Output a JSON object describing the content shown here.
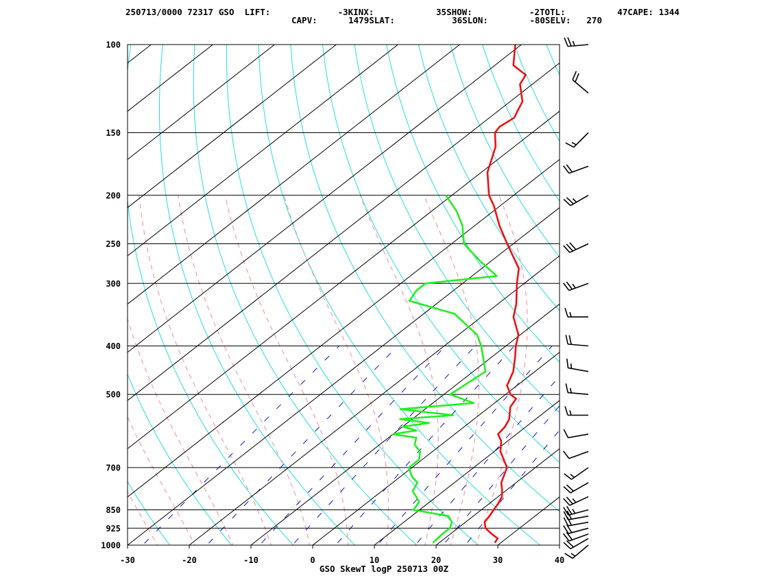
{
  "header": {
    "line1": [
      {
        "key": "stamp",
        "text": "250713/0000 72317"
      },
      {
        "key": "station",
        "text": "GSO"
      },
      {
        "key": "lift_label",
        "text": "LIFT:"
      },
      {
        "key": "lift_value",
        "text": "-3"
      },
      {
        "key": "kinx_label",
        "text": "KINX:"
      },
      {
        "key": "kinx_value",
        "text": "35"
      },
      {
        "key": "show_label",
        "text": "SHOW:"
      },
      {
        "key": "show_value",
        "text": "-2"
      },
      {
        "key": "totl_label",
        "text": "TOTL:"
      },
      {
        "key": "totl_value",
        "text": "47"
      },
      {
        "key": "cape_label",
        "text": "CAPE:"
      },
      {
        "key": "cape_value",
        "text": "1344"
      }
    ],
    "line2": [
      {
        "key": "capv_label",
        "text": "CAPV:"
      },
      {
        "key": "capv_value",
        "text": "1479"
      },
      {
        "key": "slat_label",
        "text": "SLAT:"
      },
      {
        "key": "slat_value",
        "text": "36"
      },
      {
        "key": "slon_label",
        "text": "SLON:"
      },
      {
        "key": "slon_value",
        "text": "-80"
      },
      {
        "key": "selv_label",
        "text": "SELV:"
      },
      {
        "key": "selv_value",
        "text": "270"
      }
    ]
  },
  "footer": {
    "caption": "GSO SkewT logP 250713 00Z"
  },
  "colors": {
    "temperature": "#ee1111",
    "dewpoint": "#22ee22",
    "isotherm": "#000000",
    "dry_adiabat": "#22dddd",
    "moist_adiabat": "#f4a8b0",
    "mixing_ratio": "#1010cc",
    "wind_barb": "#000000"
  },
  "chart_data": {
    "type": "skew-t log-p",
    "title": "",
    "xlabel": "",
    "ylabel": "",
    "x_range": [
      -30,
      40
    ],
    "y_range": [
      1000,
      100
    ],
    "x_ticks": [
      -30,
      -20,
      -10,
      0,
      10,
      20,
      30,
      40
    ],
    "y_ticks": [
      100,
      150,
      200,
      250,
      300,
      400,
      500,
      700,
      850,
      925,
      1000
    ],
    "series": [
      {
        "key": "temperature",
        "points": [
          [
            989,
            29.0
          ],
          [
            970,
            28.6
          ],
          [
            950,
            26.7
          ],
          [
            925,
            24.5
          ],
          [
            900,
            23.1
          ],
          [
            875,
            22.6
          ],
          [
            850,
            22.0
          ],
          [
            825,
            21.4
          ],
          [
            800,
            20.6
          ],
          [
            775,
            19.2
          ],
          [
            750,
            17.6
          ],
          [
            700,
            15.4
          ],
          [
            650,
            11.0
          ],
          [
            620,
            9.0
          ],
          [
            600,
            7.0
          ],
          [
            580,
            6.6
          ],
          [
            560,
            5.7
          ],
          [
            530,
            3.4
          ],
          [
            510,
            2.6
          ],
          [
            500,
            0.8
          ],
          [
            480,
            -1.6
          ],
          [
            450,
            -3.5
          ],
          [
            420,
            -6.3
          ],
          [
            400,
            -8.4
          ],
          [
            380,
            -10.3
          ],
          [
            350,
            -14.8
          ],
          [
            330,
            -17.0
          ],
          [
            300,
            -21.2
          ],
          [
            280,
            -24.0
          ],
          [
            250,
            -31.0
          ],
          [
            230,
            -36.0
          ],
          [
            210,
            -41.0
          ],
          [
            200,
            -44.0
          ],
          [
            180,
            -49.0
          ],
          [
            160,
            -53.0
          ],
          [
            150,
            -56.0
          ],
          [
            146,
            -56.5
          ],
          [
            140,
            -56.0
          ],
          [
            135,
            -57.0
          ],
          [
            130,
            -58.0
          ],
          [
            120,
            -62.0
          ],
          [
            115,
            -63.0
          ],
          [
            110,
            -67.0
          ],
          [
            100,
            -71.0
          ]
        ]
      },
      {
        "key": "dewpoint",
        "points": [
          [
            989,
            19.0
          ],
          [
            950,
            18.7
          ],
          [
            925,
            18.7
          ],
          [
            900,
            17.8
          ],
          [
            875,
            16.0
          ],
          [
            850,
            9.0
          ],
          [
            820,
            8.3
          ],
          [
            800,
            6.7
          ],
          [
            780,
            5.0
          ],
          [
            750,
            4.0
          ],
          [
            730,
            1.9
          ],
          [
            700,
            -0.5
          ],
          [
            675,
            -0.5
          ],
          [
            650,
            -2.0
          ],
          [
            630,
            -4.3
          ],
          [
            610,
            -5.5
          ],
          [
            600,
            -10.0
          ],
          [
            590,
            -7.0
          ],
          [
            580,
            -10.0
          ],
          [
            570,
            -6.5
          ],
          [
            560,
            -12.0
          ],
          [
            550,
            -4.2
          ],
          [
            535,
            -14.0
          ],
          [
            520,
            -3.4
          ],
          [
            500,
            -9.0
          ],
          [
            450,
            -8.0
          ],
          [
            400,
            -14.0
          ],
          [
            380,
            -17.0
          ],
          [
            360,
            -21.5
          ],
          [
            345,
            -25.0
          ],
          [
            325,
            -35.0
          ],
          [
            310,
            -36.0
          ],
          [
            300,
            -36.0
          ],
          [
            290,
            -26.0
          ],
          [
            270,
            -32.0
          ],
          [
            250,
            -38.0
          ],
          [
            230,
            -42.0
          ],
          [
            215,
            -46.0
          ],
          [
            200,
            -51.0
          ]
        ]
      }
    ],
    "wind_profile": [
      {
        "p": 1000,
        "speed": 15,
        "dir": 230
      },
      {
        "p": 970,
        "speed": 20,
        "dir": 240
      },
      {
        "p": 950,
        "speed": 20,
        "dir": 250
      },
      {
        "p": 925,
        "speed": 20,
        "dir": 255
      },
      {
        "p": 900,
        "speed": 20,
        "dir": 260
      },
      {
        "p": 875,
        "speed": 20,
        "dir": 260
      },
      {
        "p": 850,
        "speed": 25,
        "dir": 255
      },
      {
        "p": 800,
        "speed": 25,
        "dir": 245
      },
      {
        "p": 750,
        "speed": 20,
        "dir": 240
      },
      {
        "p": 700,
        "speed": 15,
        "dir": 235
      },
      {
        "p": 650,
        "speed": 10,
        "dir": 250
      },
      {
        "p": 600,
        "speed": 10,
        "dir": 260
      },
      {
        "p": 550,
        "speed": 15,
        "dir": 270
      },
      {
        "p": 500,
        "speed": 15,
        "dir": 275
      },
      {
        "p": 450,
        "speed": 15,
        "dir": 280
      },
      {
        "p": 400,
        "speed": 20,
        "dir": 275
      },
      {
        "p": 350,
        "speed": 15,
        "dir": 270
      },
      {
        "p": 300,
        "speed": 25,
        "dir": 250
      },
      {
        "p": 250,
        "speed": 30,
        "dir": 245
      },
      {
        "p": 200,
        "speed": 25,
        "dir": 240
      },
      {
        "p": 175,
        "speed": 20,
        "dir": 250
      },
      {
        "p": 150,
        "speed": 15,
        "dir": 225
      },
      {
        "p": 125,
        "speed": 20,
        "dir": 310
      },
      {
        "p": 100,
        "speed": 25,
        "dir": 265
      }
    ]
  }
}
